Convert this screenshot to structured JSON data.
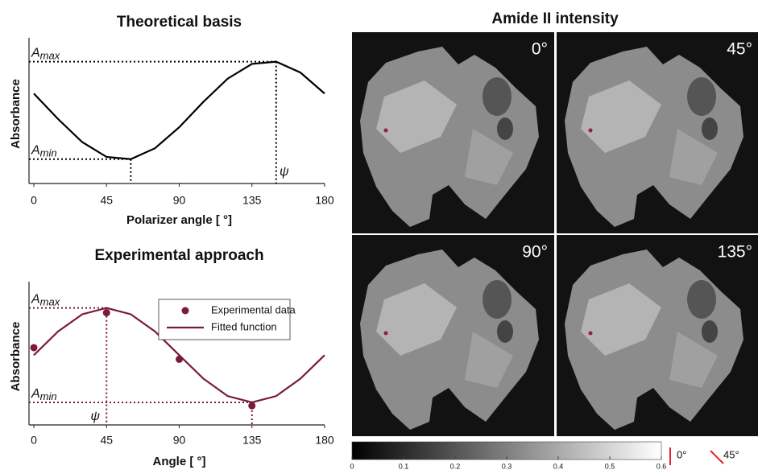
{
  "chart_data": [
    {
      "type": "line",
      "title": "Theoretical basis",
      "xlabel": "Polarizer angle [ °]",
      "ylabel": "Absorbance",
      "xlim": [
        0,
        180
      ],
      "xticks": [
        0,
        45,
        90,
        135,
        180
      ],
      "ylim": [
        0,
        1
      ],
      "series": [
        {
          "color": "#000000",
          "x": [
            0,
            15,
            30,
            45,
            60,
            75,
            90,
            105,
            120,
            135,
            150,
            165,
            180
          ],
          "values": [
            0.646,
            0.463,
            0.297,
            0.191,
            0.175,
            0.253,
            0.404,
            0.587,
            0.753,
            0.859,
            0.875,
            0.797,
            0.646
          ]
        }
      ],
      "annotations": {
        "max": [
          "A",
          "max"
        ],
        "min": [
          "A",
          "min"
        ],
        "phase": "ψ"
      }
    },
    {
      "type": "line",
      "title": "Experimental approach",
      "xlabel": "Angle [ °]",
      "ylabel": "Absorbance",
      "xlim": [
        0,
        180
      ],
      "xticks": [
        0,
        45,
        90,
        135,
        180
      ],
      "ylim": [
        0,
        1
      ],
      "series": [
        {
          "name": "Experimental data",
          "type": "scatter",
          "color": "#7a1a3c",
          "x": [
            0,
            45,
            90,
            135
          ],
          "values": [
            0.565,
            0.82,
            0.48,
            0.14
          ]
        },
        {
          "name": "Fitted function",
          "color": "#7a1a3c",
          "x": [
            0,
            15,
            30,
            45,
            60,
            75,
            90,
            105,
            120,
            135,
            150,
            165,
            180
          ],
          "values": [
            0.51,
            0.683,
            0.809,
            0.855,
            0.809,
            0.683,
            0.51,
            0.338,
            0.211,
            0.165,
            0.211,
            0.338,
            0.51
          ]
        }
      ],
      "annotations": {
        "max": [
          "A",
          "max"
        ],
        "min": [
          "A",
          "min"
        ],
        "phase": "ψ"
      }
    },
    {
      "type": "image",
      "title": "Amide II intensity",
      "panels": [
        "0°",
        "45°",
        "90°",
        "135°"
      ],
      "clim": [
        0,
        0.6
      ],
      "cticks": [
        0,
        0.1,
        0.2,
        0.3,
        0.4,
        0.5,
        0.6
      ],
      "legend": [
        {
          "label": "0°",
          "color": "#e8202a"
        },
        {
          "label": "45°",
          "color": "#e8202a"
        }
      ]
    }
  ]
}
